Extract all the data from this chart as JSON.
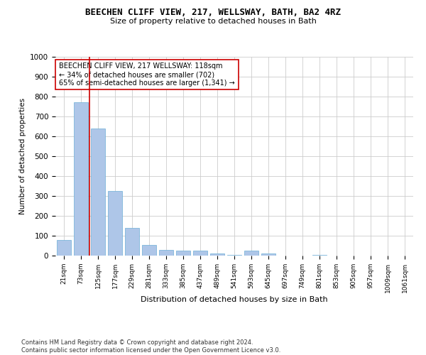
{
  "title": "BEECHEN CLIFF VIEW, 217, WELLSWAY, BATH, BA2 4RZ",
  "subtitle": "Size of property relative to detached houses in Bath",
  "xlabel": "Distribution of detached houses by size in Bath",
  "ylabel": "Number of detached properties",
  "categories": [
    "21sqm",
    "73sqm",
    "125sqm",
    "177sqm",
    "229sqm",
    "281sqm",
    "333sqm",
    "385sqm",
    "437sqm",
    "489sqm",
    "541sqm",
    "593sqm",
    "645sqm",
    "697sqm",
    "749sqm",
    "801sqm",
    "853sqm",
    "905sqm",
    "957sqm",
    "1009sqm",
    "1061sqm"
  ],
  "values": [
    80,
    770,
    640,
    325,
    140,
    55,
    30,
    25,
    25,
    10,
    5,
    25,
    10,
    0,
    0,
    5,
    0,
    0,
    0,
    0,
    0
  ],
  "bar_color": "#aec6e8",
  "bar_edge_color": "#6baed6",
  "vline_x": 1.5,
  "vline_color": "#cc0000",
  "annotation_text": "BEECHEN CLIFF VIEW, 217 WELLSWAY: 118sqm\n← 34% of detached houses are smaller (702)\n65% of semi-detached houses are larger (1,341) →",
  "annotation_box_color": "#ffffff",
  "annotation_box_edge_color": "#cc0000",
  "ylim": [
    0,
    1000
  ],
  "yticks": [
    0,
    100,
    200,
    300,
    400,
    500,
    600,
    700,
    800,
    900,
    1000
  ],
  "footer": "Contains HM Land Registry data © Crown copyright and database right 2024.\nContains public sector information licensed under the Open Government Licence v3.0.",
  "bg_color": "#ffffff",
  "grid_color": "#cccccc"
}
